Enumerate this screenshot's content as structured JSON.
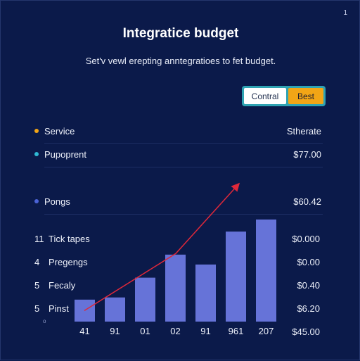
{
  "header": {
    "corner_mark": "1",
    "title": "Integratice budget",
    "subtitle": "Set'v vewl erepting anntegratioes to fet budget."
  },
  "toggle": {
    "control_label": "Contral",
    "best_label": "Best"
  },
  "legend": [
    {
      "label": "Service",
      "value": "Stherate",
      "color": "#f2a516"
    },
    {
      "label": "Pupoprent",
      "value": "$77.00",
      "color": "#2fb9d4"
    },
    {
      "label": "Pongs",
      "value": "$60.42",
      "color": "#4b63d6"
    }
  ],
  "axis_rows": [
    {
      "num": "11",
      "label": "Tick tapes",
      "value": "$0.000"
    },
    {
      "num": "4",
      "label": "Pregengs",
      "value": "$0.00"
    },
    {
      "num": "5",
      "label": "Fecaly",
      "value": "$0.40"
    },
    {
      "num": "5",
      "label": "Pinst",
      "value": "$6.20"
    }
  ],
  "bottom_value": "$45.00",
  "small_mark": "o",
  "chart_data": {
    "type": "bar",
    "categories": [
      "41",
      "91",
      "01",
      "02",
      "91",
      "961",
      "207"
    ],
    "values": [
      2.0,
      2.2,
      4.0,
      6.1,
      5.2,
      8.2,
      9.3
    ],
    "ylim": [
      0,
      10
    ],
    "trend_line": [
      1.0,
      null,
      null,
      6.2,
      null,
      null,
      12.5
    ],
    "colors": {
      "bar": "#6673d8",
      "trend": "#e0283a"
    }
  }
}
